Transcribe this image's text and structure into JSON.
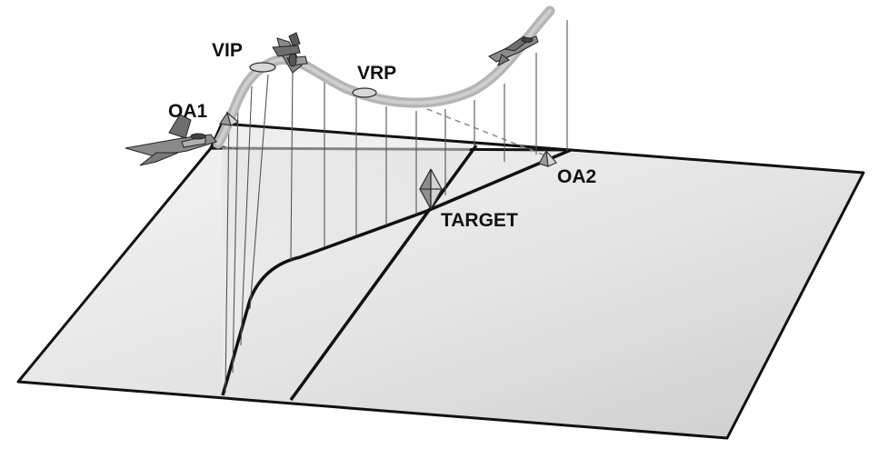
{
  "labels": {
    "vip": "VIP",
    "vrp": "VRP",
    "oa1": "OA1",
    "oa2": "OA2",
    "target": "TARGET"
  },
  "colors": {
    "ground_light": "#f2f2f2",
    "ground_dark": "#cfcfcf",
    "flight_path": "#b8b8b8",
    "outline": "#111111",
    "drop_line": "#555555"
  },
  "icons": {
    "aircraft": "fighter-jet-icon",
    "point_marker": "pyramid-marker-icon",
    "target_marker": "diamond-marker-icon",
    "waypoint": "ellipse-waypoint-icon"
  }
}
